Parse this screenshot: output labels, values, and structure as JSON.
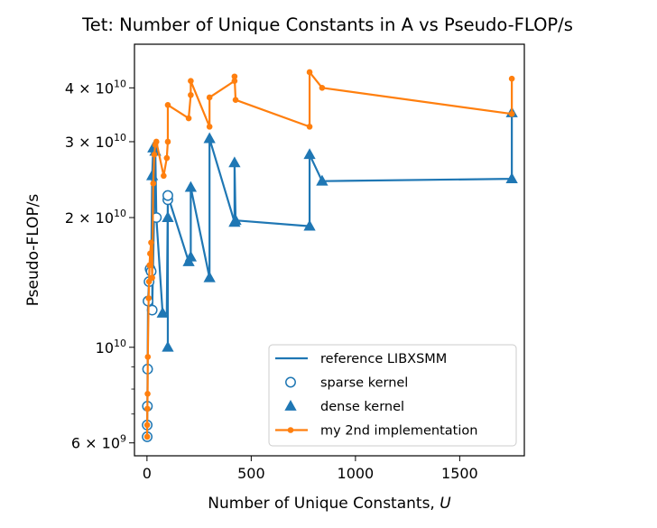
{
  "chart_data": {
    "type": "line",
    "title": "Tet: Number of Unique Constants in A vs Pseudo-FLOP/s",
    "xlabel": "Number of Unique Constants, U",
    "xlabel_text": "Number of Unique Constants, ",
    "xlabel_var": "U",
    "ylabel": "Pseudo-FLOP/s",
    "xlim": [
      -60,
      1810
    ],
    "ylim": [
      5600000000.0,
      50500000000.0
    ],
    "yscale": "log",
    "grid": false,
    "legend_position": "lower-right",
    "x_ticks": [
      {
        "value": 0,
        "label": "0"
      },
      {
        "value": 500,
        "label": "500"
      },
      {
        "value": 1000,
        "label": "1000"
      },
      {
        "value": 1500,
        "label": "1500"
      }
    ],
    "y_ticks_major": [
      {
        "value": 6000000000.0,
        "mant": "6",
        "exp": "9"
      },
      {
        "value": 10000000000.0,
        "mant": "",
        "exp": "10"
      },
      {
        "value": 20000000000.0,
        "mant": "2",
        "exp": "10"
      },
      {
        "value": 30000000000.0,
        "mant": "3",
        "exp": "10"
      },
      {
        "value": 40000000000.0,
        "mant": "4",
        "exp": "10"
      }
    ],
    "y_ticks_minor": [
      7000000000.0,
      8000000000.0,
      9000000000.0
    ],
    "legend": [
      {
        "label": "reference LIBXSMM",
        "marker": "line",
        "color": "#1f77b4"
      },
      {
        "label": "sparse kernel",
        "marker": "open-circle",
        "color": "#1f77b4"
      },
      {
        "label": "dense kernel",
        "marker": "triangle",
        "color": "#1f77b4"
      },
      {
        "label": "my 2nd implementation",
        "marker": "line-dot",
        "color": "#ff7f0e"
      }
    ],
    "series": [
      {
        "name": "reference LIBXSMM",
        "color": "#1f77b4",
        "points": [
          [
            1,
            6200000000.0
          ],
          [
            1,
            6600000000.0
          ],
          [
            2,
            7300000000.0
          ],
          [
            3,
            8900000000.0
          ],
          [
            5,
            12800000000.0
          ],
          [
            10,
            14200000000.0
          ],
          [
            15,
            15200000000.0
          ],
          [
            20,
            15000000000.0
          ],
          [
            25,
            25000000000.0
          ],
          [
            30,
            29000000000.0
          ],
          [
            25,
            12200000000.0
          ],
          [
            40,
            28500000000.0
          ],
          [
            45,
            20000000000.0
          ],
          [
            75,
            12000000000.0
          ],
          [
            95,
            12000000000.0
          ],
          [
            100,
            22000000000.0
          ],
          [
            100,
            10000000000.0
          ],
          [
            100,
            20000000000.0
          ],
          [
            100,
            22500000000.0
          ],
          [
            200,
            15800000000.0
          ],
          [
            210,
            16200000000.0
          ],
          [
            210,
            23500000000.0
          ],
          [
            300,
            14500000000.0
          ],
          [
            300,
            30500000000.0
          ],
          [
            420,
            19500000000.0
          ],
          [
            420,
            26800000000.0
          ],
          [
            425,
            19700000000.0
          ],
          [
            780,
            19100000000.0
          ],
          [
            780,
            28000000000.0
          ],
          [
            840,
            24300000000.0
          ],
          [
            1750,
            24600000000.0
          ],
          [
            1750,
            35000000000.0
          ]
        ]
      },
      {
        "name": "sparse kernel",
        "color": "#1f77b4",
        "marker": "open-circle",
        "points": [
          [
            1,
            6200000000.0
          ],
          [
            1,
            6600000000.0
          ],
          [
            2,
            7300000000.0
          ],
          [
            3,
            8900000000.0
          ],
          [
            5,
            12800000000.0
          ],
          [
            10,
            14200000000.0
          ],
          [
            15,
            15200000000.0
          ],
          [
            20,
            15000000000.0
          ],
          [
            25,
            12200000000.0
          ],
          [
            45,
            20000000000.0
          ],
          [
            100,
            22000000000.0
          ],
          [
            100,
            22500000000.0
          ]
        ]
      },
      {
        "name": "dense kernel",
        "color": "#1f77b4",
        "marker": "triangle",
        "points": [
          [
            25,
            25000000000.0
          ],
          [
            30,
            29000000000.0
          ],
          [
            40,
            28500000000.0
          ],
          [
            75,
            12000000000.0
          ],
          [
            100,
            10000000000.0
          ],
          [
            100,
            20000000000.0
          ],
          [
            200,
            15800000000.0
          ],
          [
            210,
            16200000000.0
          ],
          [
            210,
            23500000000.0
          ],
          [
            300,
            14500000000.0
          ],
          [
            300,
            30500000000.0
          ],
          [
            420,
            19500000000.0
          ],
          [
            420,
            26800000000.0
          ],
          [
            425,
            19700000000.0
          ],
          [
            780,
            19100000000.0
          ],
          [
            780,
            28000000000.0
          ],
          [
            840,
            24300000000.0
          ],
          [
            1750,
            24600000000.0
          ],
          [
            1750,
            35000000000.0
          ]
        ]
      },
      {
        "name": "my 2nd implementation",
        "color": "#ff7f0e",
        "marker": "dot",
        "points": [
          [
            1,
            6200000000.0
          ],
          [
            1,
            6600000000.0
          ],
          [
            2,
            7200000000.0
          ],
          [
            3,
            7800000000.0
          ],
          [
            4,
            9500000000.0
          ],
          [
            8,
            13000000000.0
          ],
          [
            10,
            14200000000.0
          ],
          [
            12,
            15500000000.0
          ],
          [
            15,
            16500000000.0
          ],
          [
            20,
            17500000000.0
          ],
          [
            25,
            14500000000.0
          ],
          [
            30,
            24000000000.0
          ],
          [
            35,
            28000000000.0
          ],
          [
            40,
            29500000000.0
          ],
          [
            45,
            30000000000.0
          ],
          [
            80,
            25000000000.0
          ],
          [
            95,
            27500000000.0
          ],
          [
            100,
            30000000000.0
          ],
          [
            100,
            36500000000.0
          ],
          [
            200,
            34000000000.0
          ],
          [
            210,
            38500000000.0
          ],
          [
            210,
            41500000000.0
          ],
          [
            300,
            32500000000.0
          ],
          [
            300,
            38000000000.0
          ],
          [
            420,
            41500000000.0
          ],
          [
            420,
            42500000000.0
          ],
          [
            425,
            37500000000.0
          ],
          [
            780,
            32500000000.0
          ],
          [
            780,
            43500000000.0
          ],
          [
            840,
            40000000000.0
          ],
          [
            1750,
            34800000000.0
          ],
          [
            1750,
            42000000000.0
          ]
        ]
      }
    ]
  }
}
